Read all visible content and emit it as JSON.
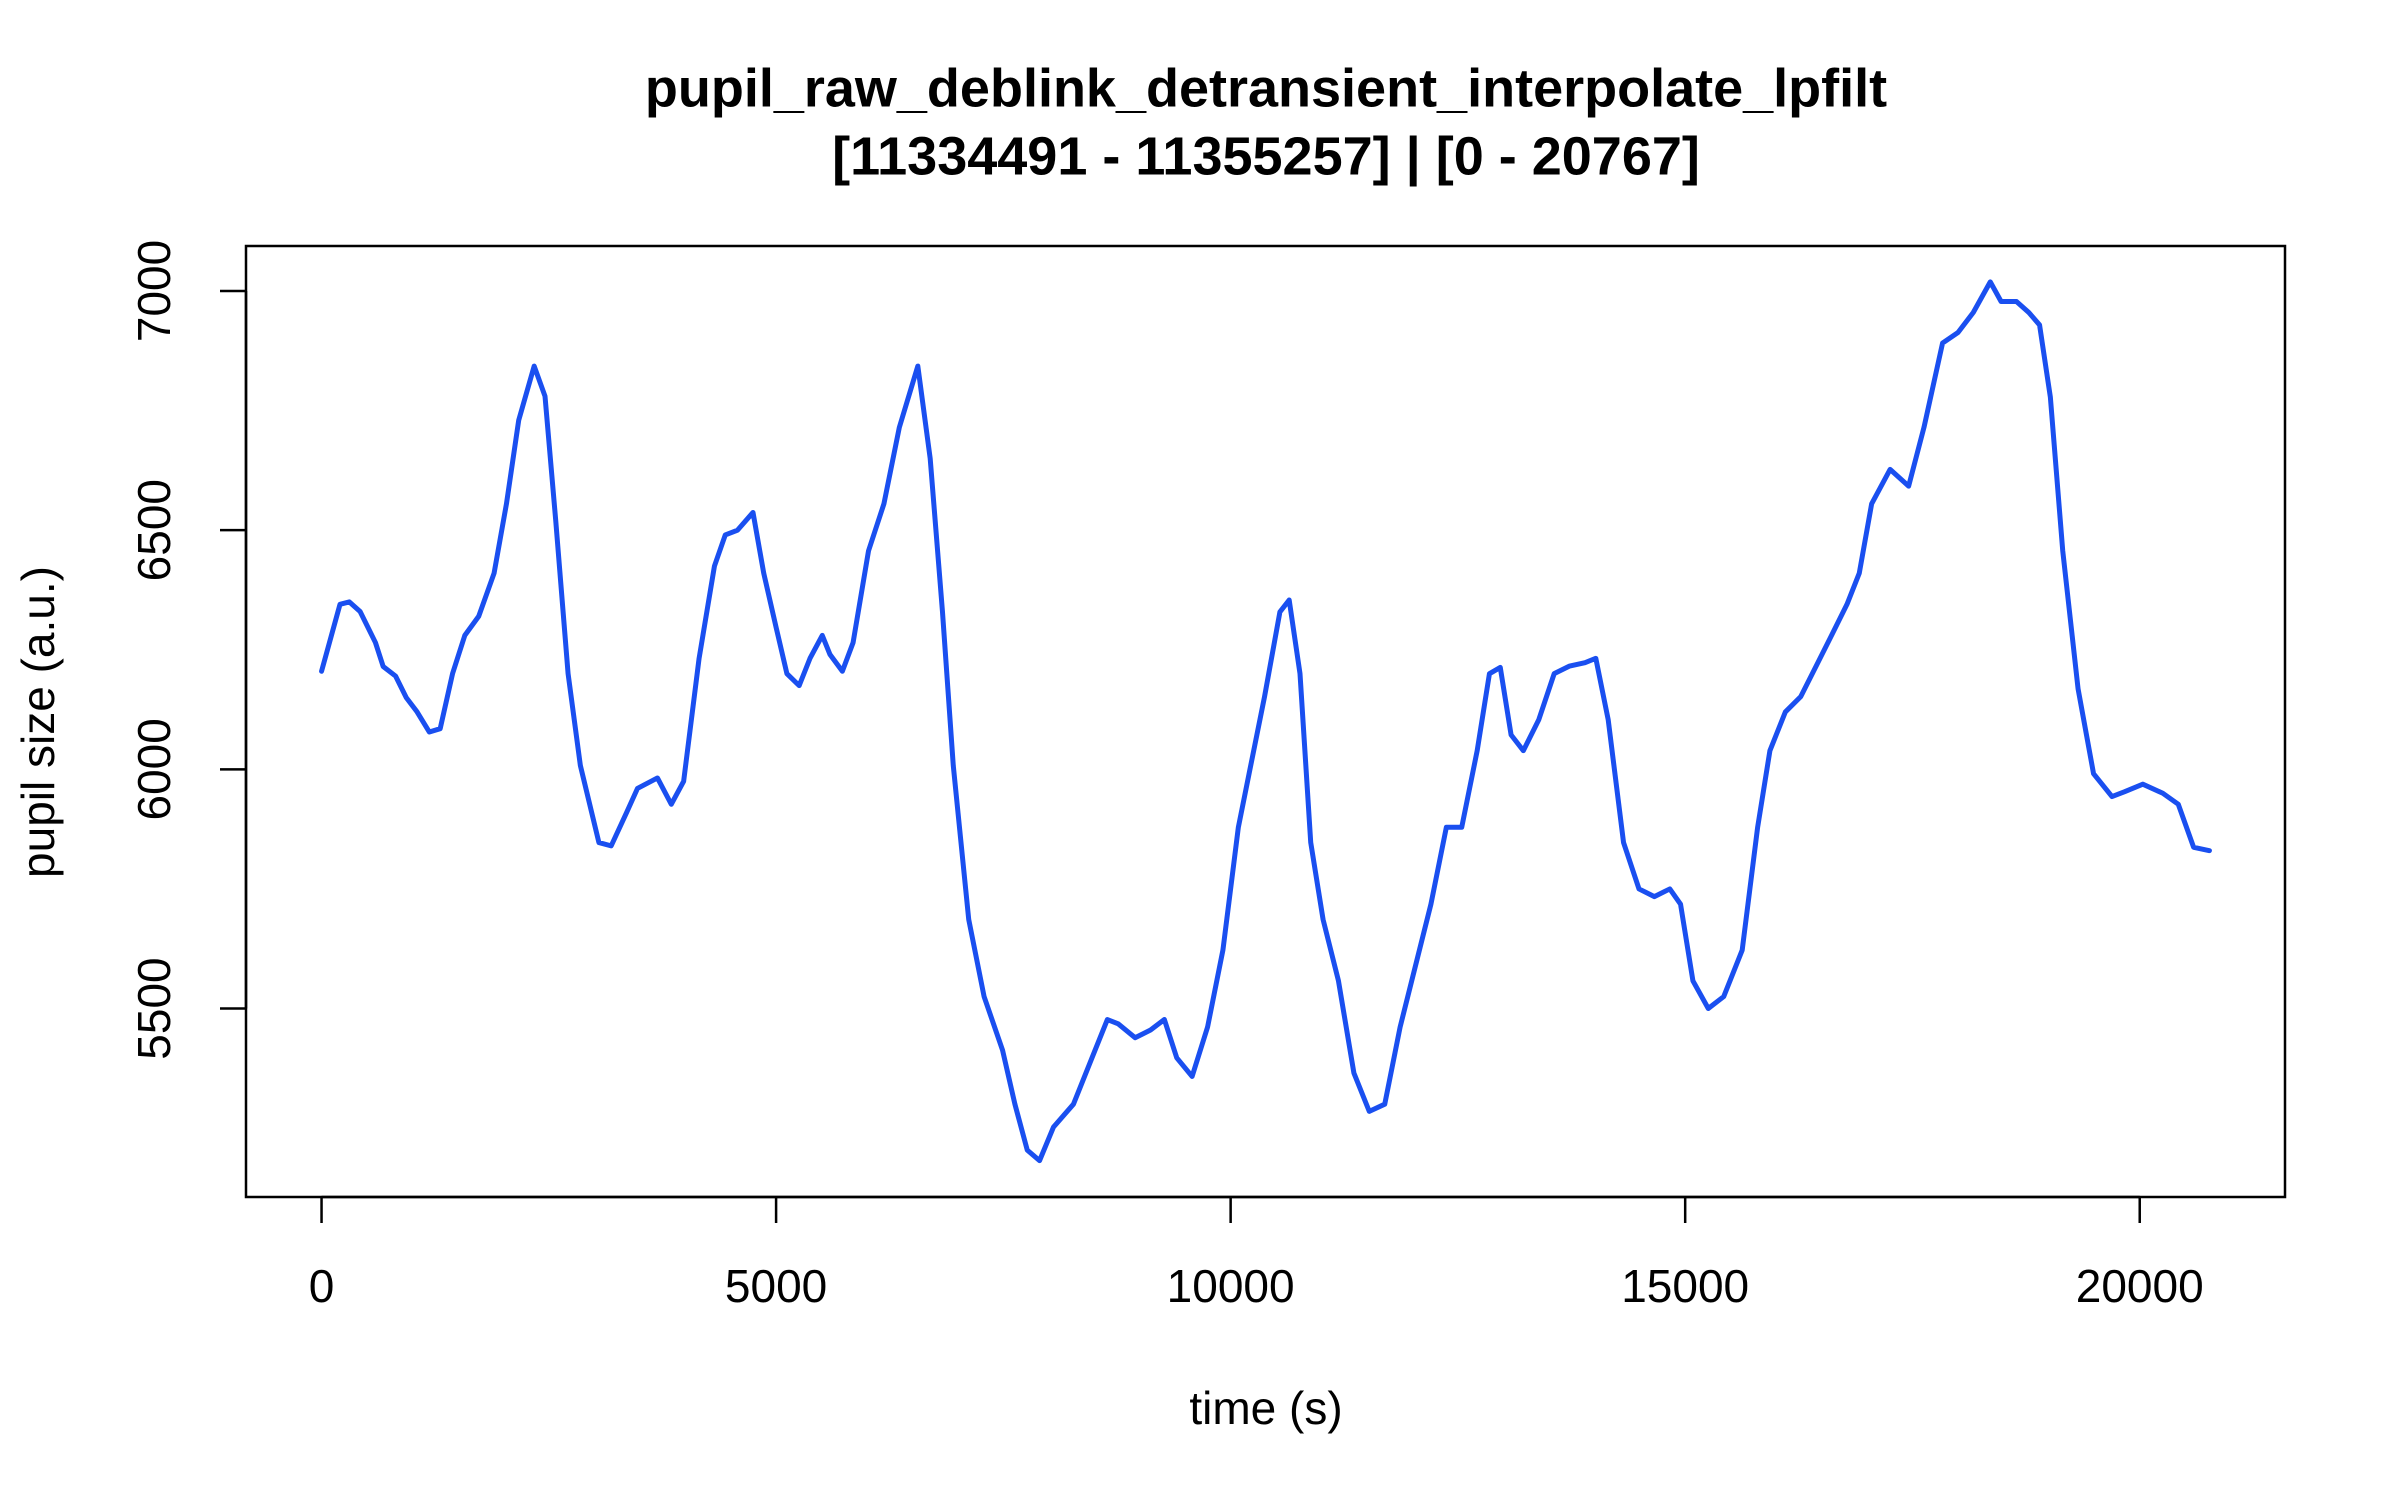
{
  "chart_data": {
    "type": "line",
    "title": "pupil_raw_deblink_detransient_interpolate_lpfilt",
    "subtitle": "[11334491 - 11355257] | [0 - 20767]",
    "x_label": "time (s)",
    "y_label": "pupil size (a.u.)",
    "color": "#1a4ff0",
    "xlim": [
      -831,
      21598
    ],
    "ylim": [
      5106,
      7094
    ],
    "xticks": [
      0,
      5000,
      10000,
      15000,
      20000
    ],
    "yticks": [
      5500,
      6000,
      6500,
      7000
    ],
    "x": [
      0,
      203,
      305,
      424,
      593,
      678,
      814,
      932,
      1051,
      1186,
      1305,
      1441,
      1576,
      1729,
      1898,
      2034,
      2169,
      2339,
      2458,
      2576,
      2712,
      2847,
      3051,
      3186,
      3356,
      3475,
      3695,
      3847,
      3983,
      4153,
      4322,
      4441,
      4576,
      4746,
      4864,
      5000,
      5119,
      5254,
      5373,
      5508,
      5593,
      5729,
      5847,
      6017,
      6186,
      6356,
      6559,
      6695,
      6830,
      6949,
      7119,
      7288,
      7491,
      7627,
      7763,
      7898,
      8051,
      8271,
      8475,
      8644,
      8763,
      8949,
      9119,
      9271,
      9407,
      9576,
      9746,
      9915,
      10085,
      10203,
      10373,
      10542,
      10644,
      10763,
      10881,
      11017,
      11186,
      11356,
      11525,
      11695,
      11864,
      12034,
      12203,
      12373,
      12542,
      12712,
      12847,
      12966,
      13085,
      13220,
      13390,
      13559,
      13729,
      13898,
      14017,
      14153,
      14322,
      14492,
      14661,
      14831,
      14949,
      15085,
      15254,
      15424,
      15627,
      15797,
      15932,
      16102,
      16271,
      16441,
      16610,
      16780,
      16915,
      17051,
      17254,
      17458,
      17627,
      17831,
      18000,
      18169,
      18356,
      18475,
      18644,
      18780,
      18898,
      19017,
      19153,
      19322,
      19492,
      19695,
      19831,
      20034,
      20254,
      20424,
      20593,
      20767
    ],
    "values": [
      6205,
      6345,
      6350,
      6330,
      6265,
      6215,
      6195,
      6150,
      6120,
      6078,
      6085,
      6200,
      6280,
      6320,
      6410,
      6555,
      6730,
      6843,
      6780,
      6520,
      6200,
      6008,
      5847,
      5840,
      5910,
      5960,
      5982,
      5927,
      5975,
      6232,
      6425,
      6490,
      6500,
      6537,
      6410,
      6297,
      6200,
      6175,
      6232,
      6280,
      6240,
      6205,
      6265,
      6457,
      6555,
      6715,
      6843,
      6650,
      6330,
      6008,
      5686,
      5525,
      5413,
      5300,
      5204,
      5182,
      5252,
      5300,
      5397,
      5477,
      5468,
      5439,
      5455,
      5477,
      5397,
      5358,
      5461,
      5622,
      5879,
      5991,
      6152,
      6329,
      6354,
      6200,
      5847,
      5686,
      5558,
      5365,
      5285,
      5300,
      5461,
      5590,
      5718,
      5879,
      5879,
      6039,
      6200,
      6213,
      6072,
      6039,
      6104,
      6200,
      6216,
      6223,
      6232,
      6104,
      5847,
      5750,
      5734,
      5750,
      5718,
      5558,
      5500,
      5525,
      5622,
      5879,
      6039,
      6120,
      6152,
      6216,
      6280,
      6345,
      6410,
      6555,
      6627,
      6592,
      6715,
      6891,
      6913,
      6955,
      7019,
      6978,
      6978,
      6955,
      6929,
      6778,
      6457,
      6168,
      5991,
      5943,
      5953,
      5969,
      5950,
      5927,
      5837,
      5830
    ]
  }
}
